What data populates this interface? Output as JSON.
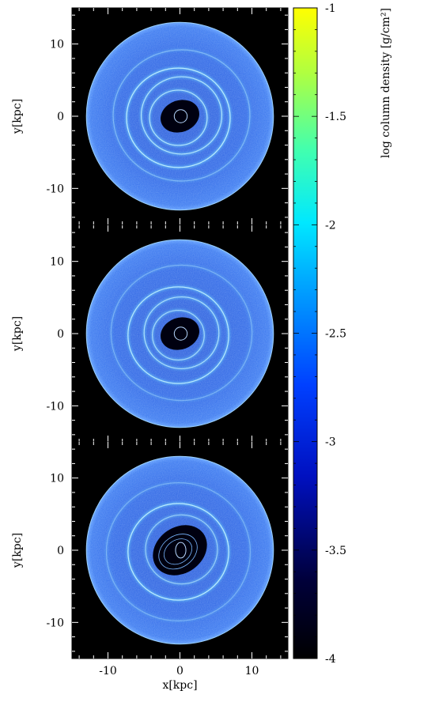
{
  "chart_data": {
    "type": "heatmap",
    "layout": "three vertically stacked panels sharing one colorbar",
    "panels": [
      {
        "name": "top",
        "xlim": [
          -15,
          15
        ],
        "ylim": [
          -15,
          15
        ],
        "ylabel": "y[kpc]",
        "yticks": [
          {
            "value": 10,
            "label": "10"
          },
          {
            "value": 0,
            "label": "0"
          },
          {
            "value": -10,
            "label": "-10"
          }
        ],
        "disk_radius_kpc": 13,
        "rings": [
          {
            "r": 7.2,
            "bright": 0.9
          },
          {
            "r": 5.6,
            "bright": 0.8
          },
          {
            "r": 4.0,
            "bright": 0.8
          },
          {
            "r": 9.5,
            "bright": 0.4
          }
        ]
      },
      {
        "name": "middle",
        "xlim": [
          -15,
          15
        ],
        "ylim": [
          -15,
          15
        ],
        "ylabel": "y[kpc]",
        "yticks": [
          {
            "value": 10,
            "label": "10"
          },
          {
            "value": 0,
            "label": "0"
          },
          {
            "value": -10,
            "label": "-10"
          }
        ],
        "disk_radius_kpc": 13,
        "rings": [
          {
            "r": 7.0,
            "bright": 0.85
          },
          {
            "r": 5.2,
            "bright": 0.75
          },
          {
            "r": 3.6,
            "bright": 0.7
          },
          {
            "r": 9.8,
            "bright": 0.35
          }
        ]
      },
      {
        "name": "bottom",
        "xlim": [
          -15,
          15
        ],
        "ylim": [
          -15,
          15
        ],
        "ylabel": "y[kpc]",
        "xlabel": "x[kpc]",
        "yticks": [
          {
            "value": 10,
            "label": "10"
          },
          {
            "value": 0,
            "label": "0"
          },
          {
            "value": -10,
            "label": "-10"
          }
        ],
        "xticks": [
          {
            "value": -10,
            "label": "-10"
          },
          {
            "value": 0,
            "label": "0"
          },
          {
            "value": 10,
            "label": "10"
          }
        ],
        "disk_radius_kpc": 13,
        "rings": [
          {
            "r": 7.0,
            "bright": 0.9
          },
          {
            "r": 5.0,
            "bright": 0.6
          },
          {
            "r": 10.0,
            "bright": 0.35
          }
        ]
      }
    ],
    "colorbar": {
      "label": "log column density [g/cm²]",
      "range": [
        -4,
        -1
      ],
      "colormap": "jet",
      "ticks": [
        {
          "value": -1,
          "label": "-1"
        },
        {
          "value": -1.5,
          "label": "-1.5"
        },
        {
          "value": -2,
          "label": "-2"
        },
        {
          "value": -2.5,
          "label": "-2.5"
        },
        {
          "value": -3,
          "label": "-3"
        },
        {
          "value": -3.5,
          "label": "-3.5"
        },
        {
          "value": -4,
          "label": "-4"
        }
      ]
    },
    "disk_base_level": -2.7,
    "grid": false
  }
}
